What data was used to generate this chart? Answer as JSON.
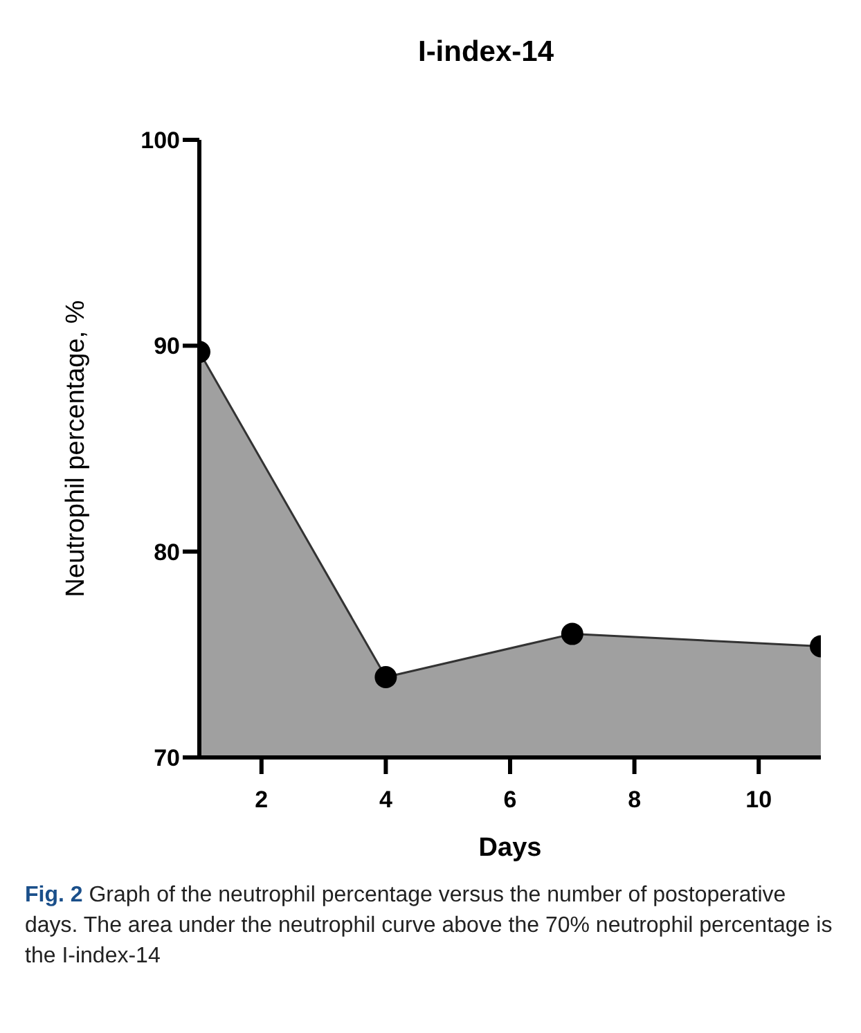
{
  "chart_data": {
    "type": "area",
    "title": "I-index-14",
    "xlabel": "Days",
    "ylabel": "Neutrophil percentage, %",
    "annotations": [
      "Fig. 2  Graph of the neutrophil percentage versus the number of postoperative days. The area under the neutrophil curve above the 70% neutrophil percentage is the I-index-14"
    ],
    "x": [
      1,
      4,
      7,
      11
    ],
    "series": [
      {
        "color": "#a0a0a0",
        "values": [
          89.7,
          73.9,
          76.0,
          75.4
        ]
      }
    ],
    "xlim": [
      1,
      11
    ],
    "xticks": [
      2,
      4,
      6,
      8,
      10
    ],
    "ylim": [
      70,
      100
    ],
    "yticks": [
      70,
      80,
      90,
      100
    ],
    "grid": false,
    "legend": false,
    "marker": "circle",
    "line_style": "solid"
  }
}
